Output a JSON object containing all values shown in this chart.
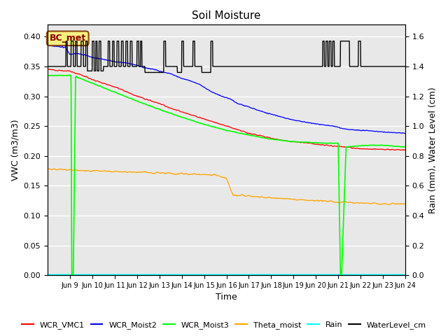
{
  "title": "Soil Moisture",
  "xlabel": "Time",
  "ylabel_left": "VWC (m3/m3)",
  "ylabel_right": "Rain (mm), Water Level (cm)",
  "xlim_days": [
    8,
    24
  ],
  "ylim_left": [
    0.0,
    0.42
  ],
  "ylim_right": [
    0.0,
    1.68
  ],
  "bg_color": "#e8e8e8",
  "annotation_text": "BC_met",
  "annotation_box_facecolor": "#f5f080",
  "annotation_box_edgecolor": "#8b4513",
  "annotation_text_color": "#8b0000",
  "legend_entries": [
    "WCR_VMC1",
    "WCR_Moist2",
    "WCR_Moist3",
    "Theta_moist",
    "Rain",
    "WaterLevel_cm"
  ],
  "legend_colors": [
    "red",
    "blue",
    "lime",
    "orange",
    "cyan",
    "black"
  ],
  "yticks_left": [
    0.0,
    0.05,
    0.1,
    0.15,
    0.2,
    0.25,
    0.3,
    0.35,
    0.4
  ],
  "yticks_right_vals": [
    0.0,
    0.2,
    0.4,
    0.6,
    0.8,
    1.0,
    1.2,
    1.4,
    1.6
  ],
  "xtick_labels": [
    "Jun 9",
    "Jun 10",
    "Jun 11",
    "Jun 12",
    "Jun 13",
    "Jun 14",
    "Jun 15",
    "Jun 16",
    "Jun 17",
    "Jun 18",
    "Jun 19",
    "Jun 20",
    "Jun 21",
    "Jun 22",
    "Jun 23",
    "Jun 24"
  ],
  "xtick_positions": [
    9,
    10,
    11,
    12,
    13,
    14,
    15,
    16,
    17,
    18,
    19,
    20,
    21,
    22,
    23,
    24
  ]
}
